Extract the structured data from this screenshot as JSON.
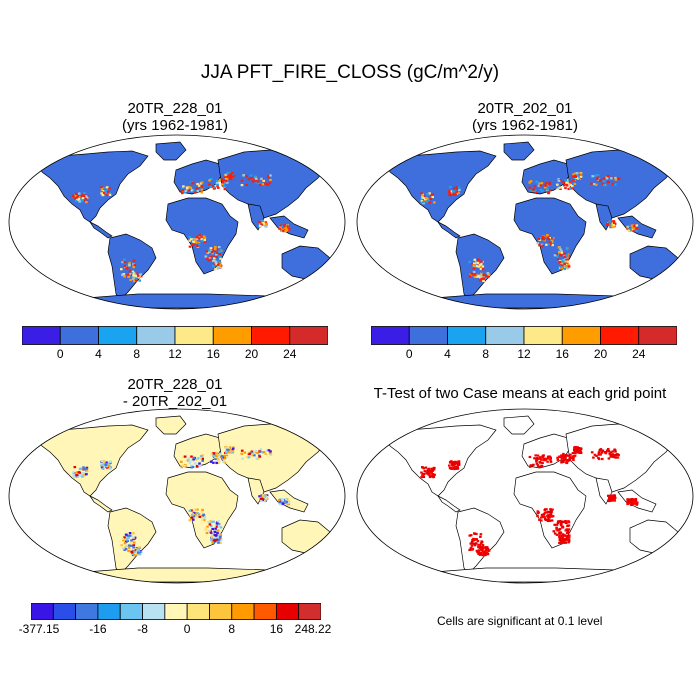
{
  "title": "JJA PFT_FIRE_CLOSS (gC/m^2/y)",
  "panels": [
    {
      "title_line1": "20TR_228_01",
      "title_line2": "(yrs 1962-1981)"
    },
    {
      "title_line1": "20TR_202_01",
      "title_line2": "(yrs 1962-1981)"
    },
    {
      "title_line1": "20TR_228_01",
      "title_line2": "- 20TR_202_01"
    },
    {
      "title_line1": "T-Test of two Case means at each grid point",
      "title_line2": ""
    }
  ],
  "note": "Cells are significant at 0.1 level",
  "colorbar_main": {
    "colors": [
      "#3b1ee6",
      "#3f6fdd",
      "#1aa3f0",
      "#99cbe8",
      "#fde88a",
      "#ff9c00",
      "#ff1a00",
      "#d42a2a"
    ],
    "tick_labels": [
      "0",
      "4",
      "8",
      "12",
      "16",
      "20",
      "24"
    ]
  },
  "colorbar_diff": {
    "colors": [
      "#3a16e6",
      "#2a4ee8",
      "#3f78e0",
      "#1e9cf0",
      "#6cc4f0",
      "#b8e2f2",
      "#fff6b8",
      "#fde37a",
      "#fdc53c",
      "#ff9a00",
      "#ff5a00",
      "#e60000",
      "#d22e2e"
    ],
    "tick_labels": [
      "-377.15",
      "-16",
      "-8",
      "0",
      "8",
      "16",
      "248.22"
    ]
  },
  "chart_data": [
    {
      "type": "heatmap",
      "title": "20TR_228_01 (yrs 1962-1981)",
      "variable": "JJA PFT_FIRE_CLOSS",
      "units": "gC/m^2/y",
      "color_levels": [
        0,
        4,
        8,
        12,
        16,
        20,
        24
      ]
    },
    {
      "type": "heatmap",
      "title": "20TR_202_01 (yrs 1962-1981)",
      "variable": "JJA PFT_FIRE_CLOSS",
      "units": "gC/m^2/y",
      "color_levels": [
        0,
        4,
        8,
        12,
        16,
        20,
        24
      ]
    },
    {
      "type": "heatmap",
      "title": "20TR_228_01 - 20TR_202_01",
      "variable": "JJA PFT_FIRE_CLOSS difference",
      "units": "gC/m^2/y",
      "range": [
        -377.15,
        248.22
      ],
      "color_levels": [
        -16,
        -8,
        0,
        8,
        16
      ]
    },
    {
      "type": "heatmap",
      "title": "T-Test of two Case means at each grid point",
      "significance_level": 0.1
    }
  ]
}
